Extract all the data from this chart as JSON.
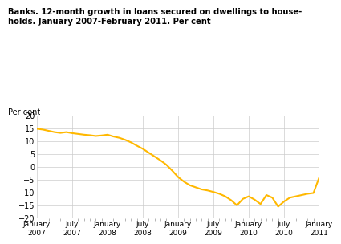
{
  "title": "Banks. 12-month growth in loans secured on dwellings to house-\nholds. January 2007-February 2011. Per cent",
  "ylabel": "Per cent",
  "ylim": [
    -20,
    20
  ],
  "yticks": [
    -20,
    -15,
    -10,
    -5,
    0,
    5,
    10,
    15,
    20
  ],
  "line_color": "#FFB800",
  "line_width": 1.5,
  "background_color": "#ffffff",
  "grid_color": "#cccccc",
  "x_tick_labels": [
    "January\n2007",
    "July\n2007",
    "January\n2008",
    "July\n2008",
    "January\n2009",
    "July\n2009",
    "January\n2010",
    "July\n2010",
    "January\n2011"
  ],
  "data_x": [
    0,
    1,
    2,
    3,
    4,
    5,
    6,
    7,
    8,
    9,
    10,
    11,
    12,
    13,
    14,
    15,
    16,
    17,
    18,
    19,
    20,
    21,
    22,
    23,
    24,
    25,
    26,
    27,
    28,
    29,
    30,
    31,
    32,
    33,
    34,
    35,
    36,
    37,
    38,
    39,
    40,
    41,
    42,
    43,
    44,
    45,
    46,
    47,
    48
  ],
  "data_y": [
    14.8,
    14.5,
    14.0,
    13.5,
    13.2,
    13.5,
    13.1,
    12.8,
    12.5,
    12.3,
    12.0,
    12.2,
    12.5,
    11.8,
    11.3,
    10.5,
    9.5,
    8.2,
    7.0,
    5.5,
    4.0,
    2.5,
    0.8,
    -1.5,
    -4.0,
    -5.8,
    -7.2,
    -8.0,
    -8.8,
    -9.2,
    -9.8,
    -10.5,
    -11.5,
    -13.0,
    -15.0,
    -12.5,
    -11.5,
    -12.8,
    -14.5,
    -11.0,
    -12.0,
    -15.5,
    -13.5,
    -12.0,
    -11.5,
    -11.0,
    -10.5,
    -10.2,
    -4.0
  ]
}
